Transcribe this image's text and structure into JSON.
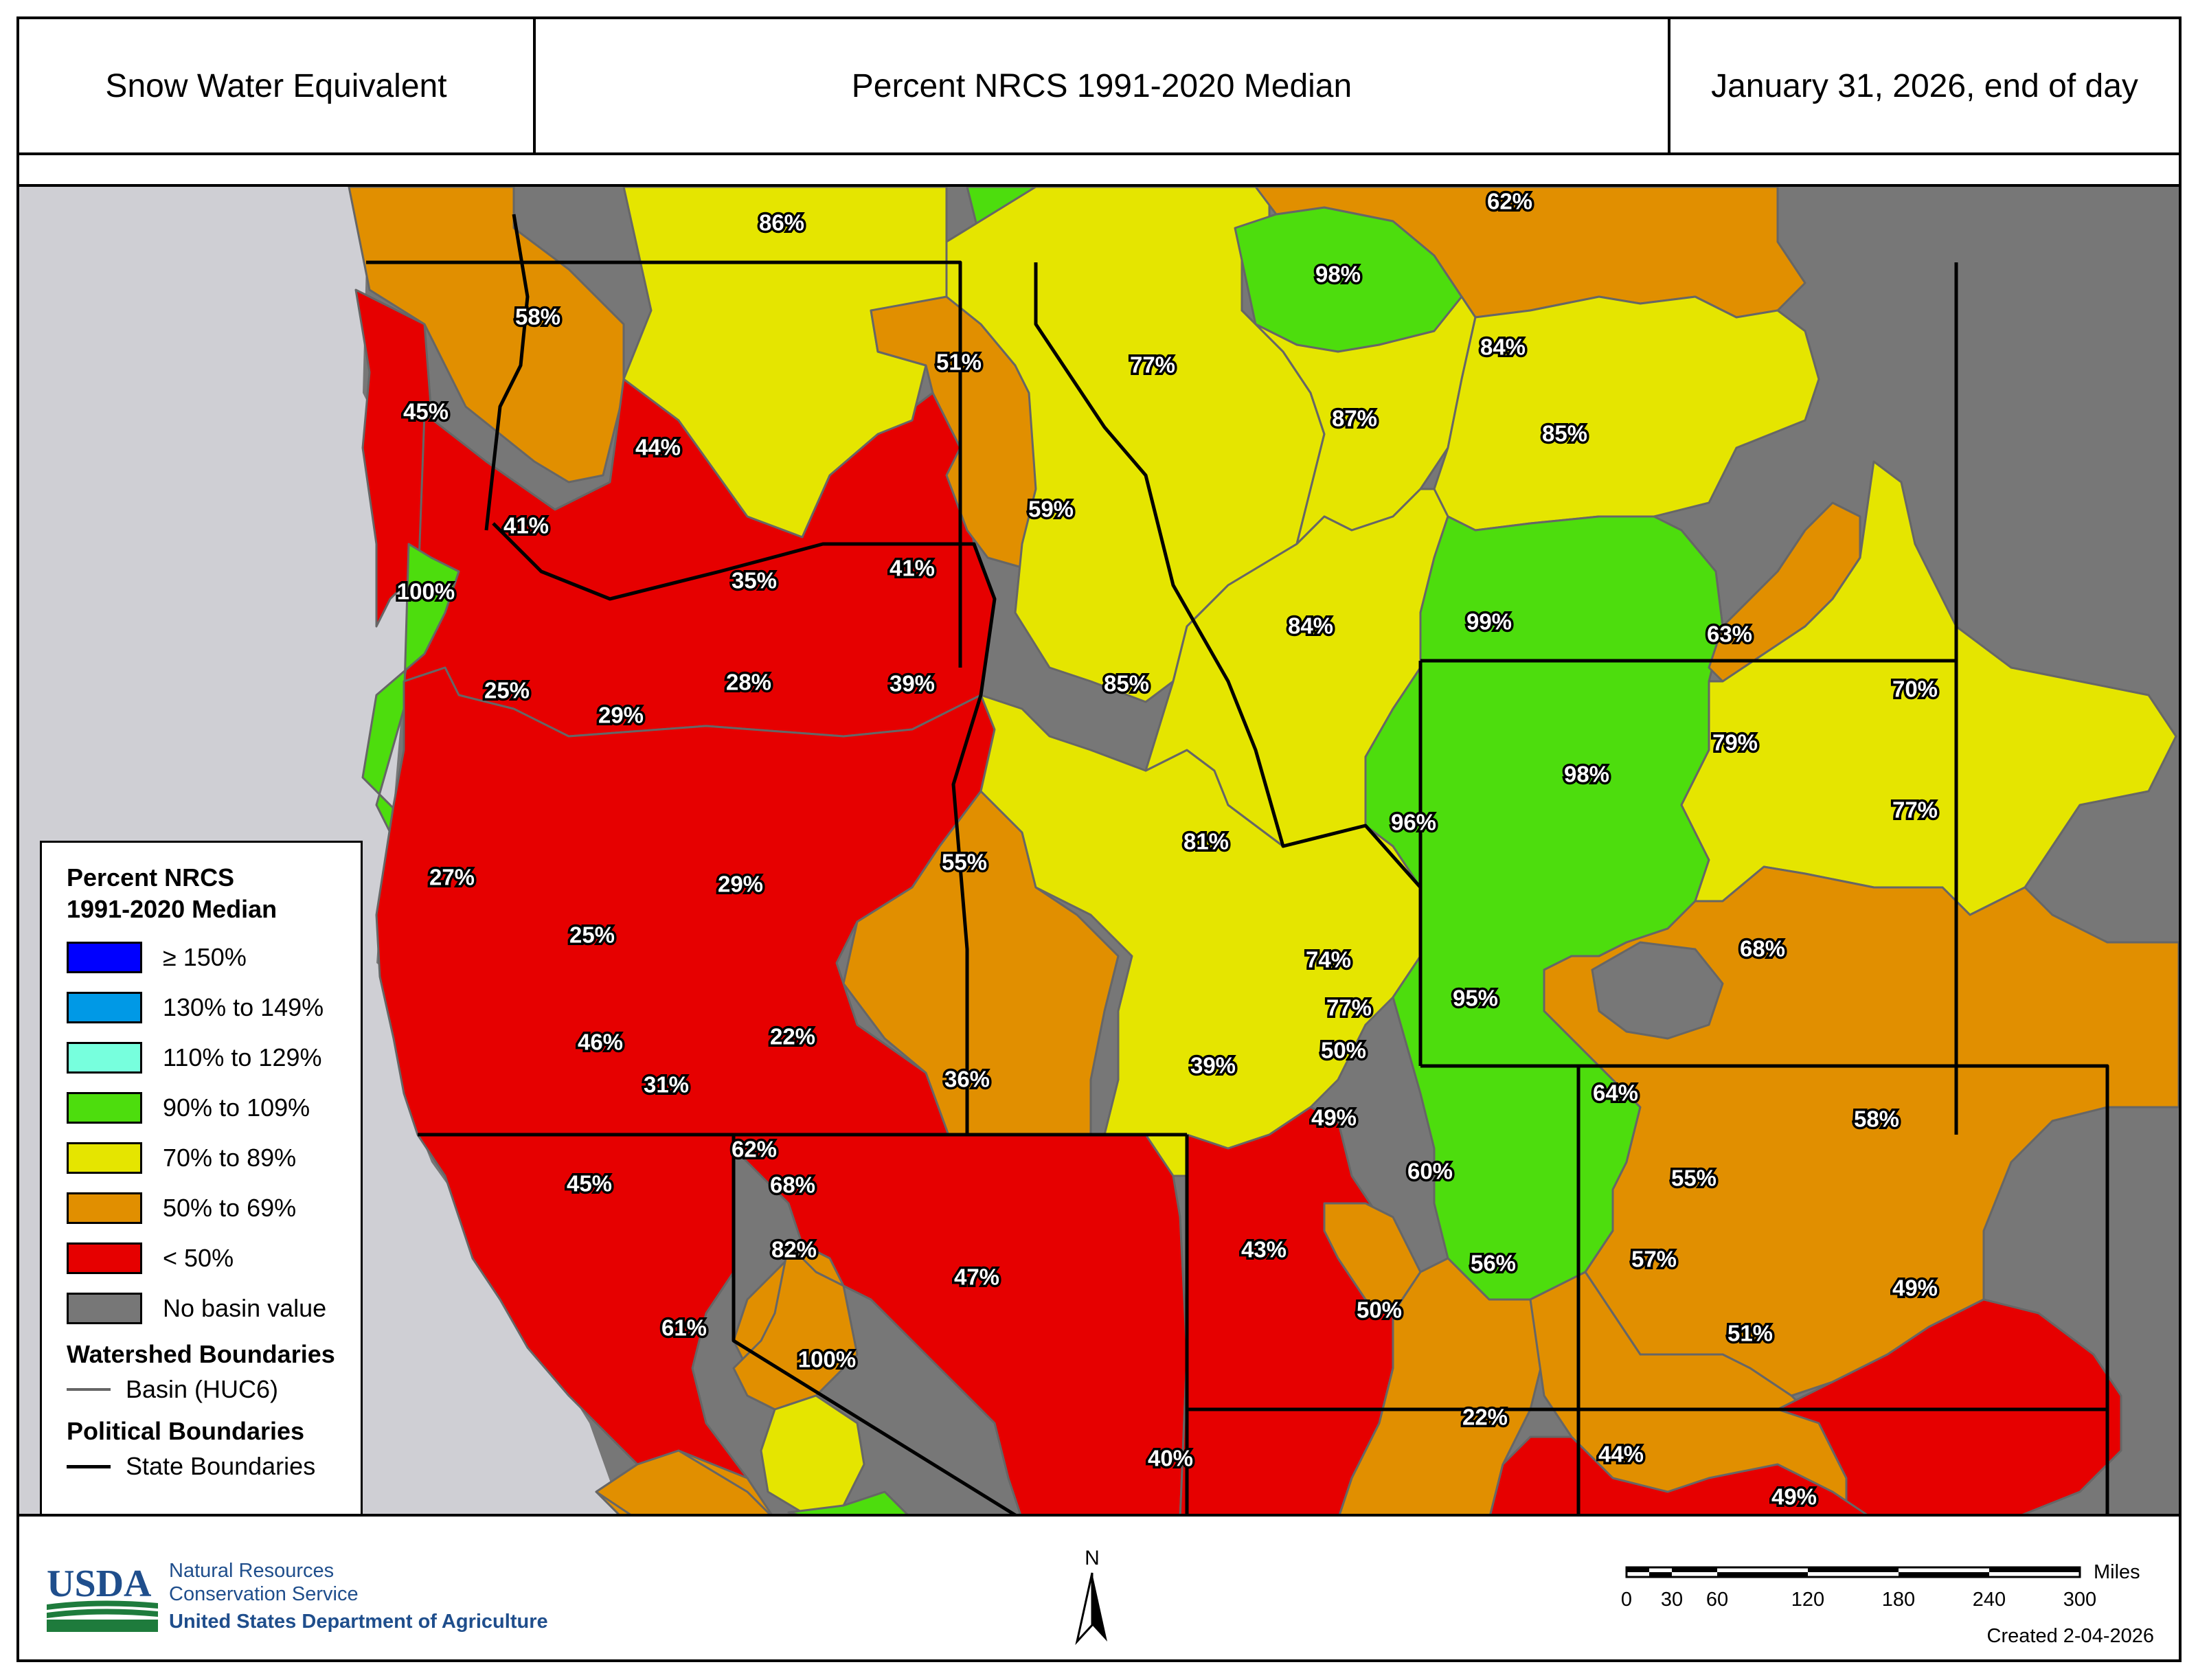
{
  "header": {
    "title_left": "Snow Water Equivalent",
    "title_center": "Percent NRCS 1991-2020 Median",
    "title_right": "January 31, 2026, end of day"
  },
  "colors": {
    "ge150": "#0000ff",
    "c130_149": "#0099e6",
    "c110_129": "#77ffdd",
    "c90_109": "#4ddd0d",
    "c70_89": "#e5e500",
    "c50_69": "#e18f00",
    "lt50": "#e60000",
    "no_value": "#777777",
    "ocean": "#cfcfd4",
    "huc6_line": "#666666",
    "state_line": "#000000"
  },
  "legend": {
    "title_line1": "Percent NRCS",
    "title_line2": "1991-2020 Median",
    "items": [
      {
        "label": "≥ 150%",
        "color_key": "ge150"
      },
      {
        "label": "130% to 149%",
        "color_key": "c130_149"
      },
      {
        "label": "110% to 129%",
        "color_key": "c110_129"
      },
      {
        "label": "90% to 109%",
        "color_key": "c90_109"
      },
      {
        "label": "70% to 89%",
        "color_key": "c70_89"
      },
      {
        "label": "50% to 69%",
        "color_key": "c50_69"
      },
      {
        "label": "< 50%",
        "color_key": "lt50"
      },
      {
        "label": "No basin value",
        "color_key": "no_value"
      }
    ],
    "watershed_title": "Watershed Boundaries",
    "basin_label": "Basin (HUC6)",
    "political_title": "Political Boundaries",
    "state_label": "State Boundaries"
  },
  "basins": [
    {
      "value": "86%"
    },
    {
      "value": "62%"
    },
    {
      "value": "98%"
    },
    {
      "value": "58%"
    },
    {
      "value": "51%"
    },
    {
      "value": "77%"
    },
    {
      "value": "84%"
    },
    {
      "value": "45%"
    },
    {
      "value": "44%"
    },
    {
      "value": "87%"
    },
    {
      "value": "85%"
    },
    {
      "value": "59%"
    },
    {
      "value": "41%"
    },
    {
      "value": "100%"
    },
    {
      "value": "35%"
    },
    {
      "value": "41%"
    },
    {
      "value": "84%"
    },
    {
      "value": "99%"
    },
    {
      "value": "63%"
    },
    {
      "value": "25%"
    },
    {
      "value": "28%"
    },
    {
      "value": "39%"
    },
    {
      "value": "85%"
    },
    {
      "value": "29%"
    },
    {
      "value": "70%"
    },
    {
      "value": "98%"
    },
    {
      "value": "79%"
    },
    {
      "value": "96%"
    },
    {
      "value": "77%"
    },
    {
      "value": "81%"
    },
    {
      "value": "55%"
    },
    {
      "value": "27%"
    },
    {
      "value": "29%"
    },
    {
      "value": "25%"
    },
    {
      "value": "68%"
    },
    {
      "value": "74%"
    },
    {
      "value": "95%"
    },
    {
      "value": "77%"
    },
    {
      "value": "50%"
    },
    {
      "value": "22%"
    },
    {
      "value": "46%"
    },
    {
      "value": "36%"
    },
    {
      "value": "39%"
    },
    {
      "value": "31%"
    },
    {
      "value": "64%"
    },
    {
      "value": "58%"
    },
    {
      "value": "49%"
    },
    {
      "value": "62%"
    },
    {
      "value": "60%"
    },
    {
      "value": "68%"
    },
    {
      "value": "55%"
    },
    {
      "value": "45%"
    },
    {
      "value": "82%"
    },
    {
      "value": "43%"
    },
    {
      "value": "56%"
    },
    {
      "value": "57%"
    },
    {
      "value": "47%"
    },
    {
      "value": "49%"
    },
    {
      "value": "50%"
    },
    {
      "value": "61%"
    },
    {
      "value": "51%"
    },
    {
      "value": "100%"
    },
    {
      "value": "22%"
    },
    {
      "value": "44%"
    },
    {
      "value": "40%"
    },
    {
      "value": "49%"
    }
  ],
  "footer": {
    "agency_line1": "Natural Resources",
    "agency_line2": "Conservation Service",
    "agency_line3": "United States Department of Agriculture",
    "usda_logo_text": "USDA",
    "north_label": "N",
    "scale_unit": "Miles",
    "scale_ticks": [
      "0",
      "30",
      "60",
      "120",
      "180",
      "240",
      "300"
    ],
    "created": "Created 2-04-2026"
  }
}
